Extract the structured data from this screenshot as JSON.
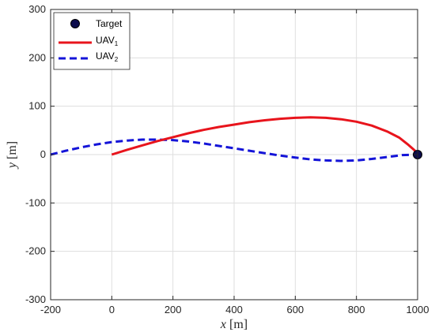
{
  "chart_data": {
    "type": "line",
    "title": "",
    "xlabel": {
      "var": "x",
      "unit": " [m]"
    },
    "ylabel": {
      "var": "y",
      "unit": " [m]"
    },
    "xlim": [
      -200,
      1000
    ],
    "ylim": [
      -300,
      300
    ],
    "xticks": [
      -200,
      0,
      200,
      400,
      600,
      800,
      1000
    ],
    "yticks": [
      -300,
      -200,
      -100,
      0,
      100,
      200,
      300
    ],
    "xtick_labels": [
      "-200",
      "0",
      "200",
      "400",
      "600",
      "800",
      "1000"
    ],
    "ytick_labels": [
      "-300",
      "-200",
      "-100",
      "0",
      "100",
      "200",
      "300"
    ],
    "grid": true,
    "legend_position": "top-left",
    "target": {
      "name": "Target",
      "x": 1000,
      "y": 0,
      "color": "#0d0d4d"
    },
    "series": [
      {
        "name": "UAV",
        "subscript": "1",
        "color": "#e8141c",
        "style": "solid",
        "x": [
          0,
          50,
          100,
          150,
          200,
          250,
          300,
          350,
          400,
          450,
          500,
          550,
          600,
          650,
          700,
          750,
          800,
          850,
          900,
          940,
          970,
          990,
          1000
        ],
        "y": [
          0,
          10,
          19,
          28,
          36,
          44,
          51,
          57,
          62,
          67,
          71,
          74,
          76,
          77,
          76,
          73,
          68,
          60,
          48,
          35,
          20,
          9,
          0
        ]
      },
      {
        "name": "UAV",
        "subscript": "2",
        "color": "#1414d8",
        "style": "dashed",
        "x": [
          -200,
          -150,
          -100,
          -50,
          0,
          50,
          100,
          150,
          200,
          250,
          300,
          350,
          400,
          450,
          500,
          550,
          600,
          650,
          700,
          750,
          800,
          850,
          900,
          950,
          1000
        ],
        "y": [
          0,
          8,
          15,
          21,
          26,
          29,
          31,
          31,
          30,
          27,
          23,
          18,
          13,
          8,
          3,
          -2,
          -6,
          -10,
          -12,
          -13,
          -12,
          -9,
          -5,
          -1,
          0
        ]
      }
    ]
  }
}
